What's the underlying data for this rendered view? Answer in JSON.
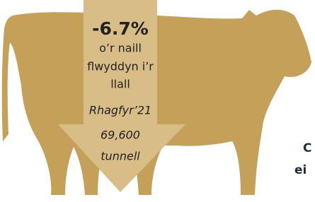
{
  "change": "-6.7%",
  "change_note": [
    "o’r naill",
    "flwyddyn i’r",
    "llall"
  ],
  "period": "Rhagfyr’21",
  "amount": [
    "69,600",
    "tunnell"
  ],
  "side_text": [
    "C",
    "ei"
  ]
}
